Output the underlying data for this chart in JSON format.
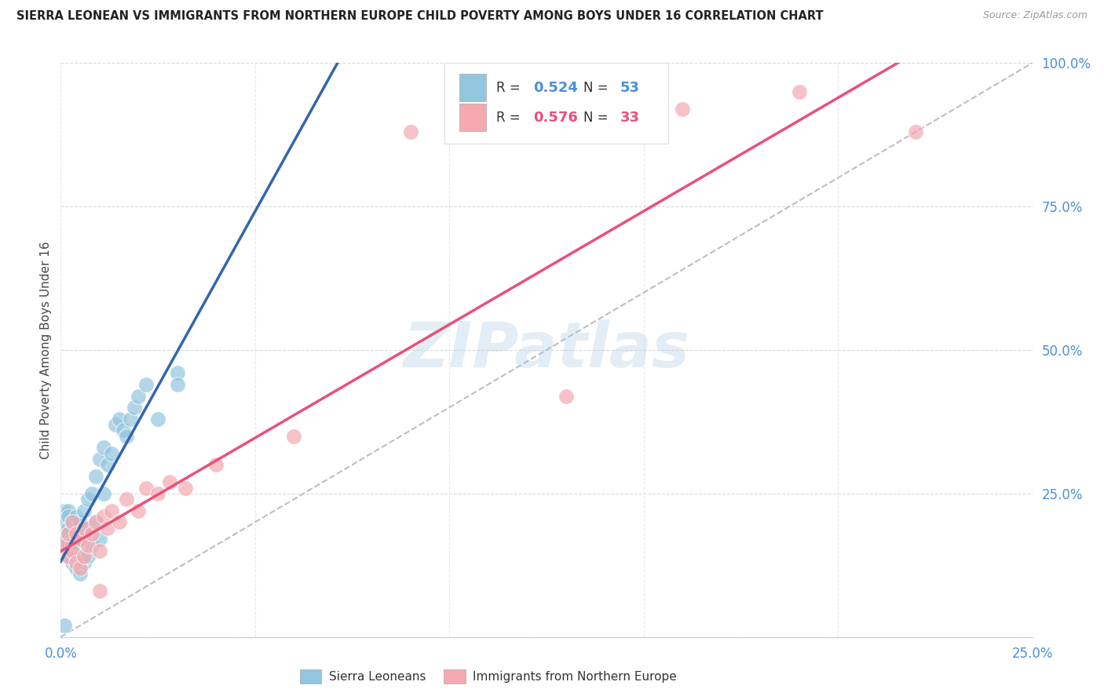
{
  "title": "SIERRA LEONEAN VS IMMIGRANTS FROM NORTHERN EUROPE CHILD POVERTY AMONG BOYS UNDER 16 CORRELATION CHART",
  "source": "Source: ZipAtlas.com",
  "ylabel": "Child Poverty Among Boys Under 16",
  "xlim": [
    0,
    0.25
  ],
  "ylim": [
    0,
    1.0
  ],
  "legend_r1": "0.524",
  "legend_n1": "53",
  "legend_r2": "0.576",
  "legend_n2": "33",
  "legend_label1": "Sierra Leoneans",
  "legend_label2": "Immigrants from Northern Europe",
  "blue_color": "#92c5de",
  "pink_color": "#f4a9b0",
  "blue_line_color": "#3465a8",
  "pink_line_color": "#e8507a",
  "watermark": "ZIPatlas",
  "background_color": "#ffffff",
  "grid_color": "#d0d0d0",
  "blue_dots_x": [
    0.001,
    0.001,
    0.001,
    0.001,
    0.001,
    0.002,
    0.002,
    0.002,
    0.002,
    0.002,
    0.002,
    0.003,
    0.003,
    0.003,
    0.003,
    0.003,
    0.004,
    0.004,
    0.004,
    0.004,
    0.004,
    0.005,
    0.005,
    0.005,
    0.005,
    0.006,
    0.006,
    0.006,
    0.007,
    0.007,
    0.007,
    0.008,
    0.008,
    0.009,
    0.009,
    0.01,
    0.01,
    0.011,
    0.011,
    0.012,
    0.013,
    0.014,
    0.015,
    0.016,
    0.017,
    0.018,
    0.019,
    0.02,
    0.022,
    0.025,
    0.03,
    0.03,
    0.001
  ],
  "blue_dots_y": [
    0.18,
    0.2,
    0.22,
    0.15,
    0.17,
    0.16,
    0.19,
    0.22,
    0.14,
    0.18,
    0.21,
    0.15,
    0.17,
    0.2,
    0.13,
    0.16,
    0.14,
    0.18,
    0.21,
    0.12,
    0.16,
    0.14,
    0.17,
    0.2,
    0.11,
    0.13,
    0.18,
    0.22,
    0.14,
    0.19,
    0.24,
    0.16,
    0.25,
    0.2,
    0.28,
    0.17,
    0.31,
    0.25,
    0.33,
    0.3,
    0.32,
    0.37,
    0.38,
    0.36,
    0.35,
    0.38,
    0.4,
    0.42,
    0.44,
    0.38,
    0.46,
    0.44,
    0.02
  ],
  "pink_dots_x": [
    0.001,
    0.002,
    0.002,
    0.003,
    0.003,
    0.004,
    0.004,
    0.005,
    0.005,
    0.006,
    0.006,
    0.007,
    0.008,
    0.009,
    0.01,
    0.011,
    0.012,
    0.013,
    0.015,
    0.017,
    0.02,
    0.022,
    0.025,
    0.028,
    0.032,
    0.04,
    0.06,
    0.09,
    0.16,
    0.19,
    0.22,
    0.01,
    0.13
  ],
  "pink_dots_y": [
    0.16,
    0.14,
    0.18,
    0.15,
    0.2,
    0.13,
    0.18,
    0.12,
    0.17,
    0.14,
    0.19,
    0.16,
    0.18,
    0.2,
    0.15,
    0.21,
    0.19,
    0.22,
    0.2,
    0.24,
    0.22,
    0.26,
    0.25,
    0.27,
    0.26,
    0.3,
    0.35,
    0.88,
    0.92,
    0.95,
    0.88,
    0.08,
    0.42
  ]
}
